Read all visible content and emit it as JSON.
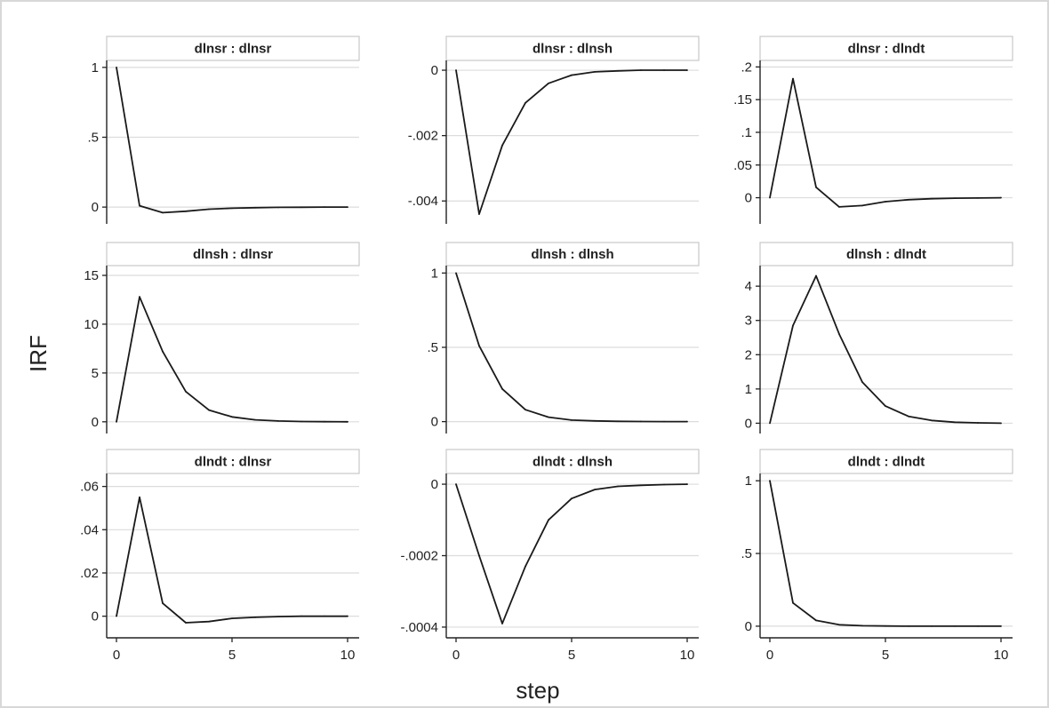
{
  "chart_data": {
    "type": "line",
    "xlabel": "step",
    "ylabel": "IRF",
    "xlim": [
      0,
      10
    ],
    "xticks": [
      0,
      5,
      10
    ],
    "grid": true,
    "x": [
      0,
      1,
      2,
      3,
      4,
      5,
      6,
      7,
      8,
      9,
      10
    ],
    "panels": [
      {
        "title": "dlnsr : dlnsr",
        "ylim": [
          -0.12,
          1.05
        ],
        "yticks": [
          {
            "v": 1,
            "label": "1"
          },
          {
            "v": 0.5,
            "label": ".5"
          },
          {
            "v": 0,
            "label": "0"
          }
        ],
        "values": [
          1,
          0.01,
          -0.04,
          -0.03,
          -0.015,
          -0.008,
          -0.004,
          -0.002,
          -0.001,
          0,
          0
        ]
      },
      {
        "title": "dlnsr : dlnsh",
        "ylim": [
          -0.0047,
          0.0003
        ],
        "yticks": [
          {
            "v": 0,
            "label": "0"
          },
          {
            "v": -0.002,
            "label": "-.002"
          },
          {
            "v": -0.004,
            "label": "-.004"
          }
        ],
        "values": [
          0,
          -0.0044,
          -0.0023,
          -0.001,
          -0.0004,
          -0.00015,
          -5e-05,
          -2e-05,
          0,
          0,
          0
        ]
      },
      {
        "title": "dlnsr : dlndt",
        "ylim": [
          -0.04,
          0.21
        ],
        "yticks": [
          {
            "v": 0.2,
            "label": ".2"
          },
          {
            "v": 0.15,
            "label": ".15"
          },
          {
            "v": 0.1,
            "label": ".1"
          },
          {
            "v": 0.05,
            "label": ".05"
          },
          {
            "v": 0,
            "label": "0"
          }
        ],
        "values": [
          0,
          0.182,
          0.016,
          -0.014,
          -0.012,
          -0.006,
          -0.003,
          -0.0015,
          -0.0008,
          -0.0004,
          0
        ]
      },
      {
        "title": "dlnsh : dlnsr",
        "ylim": [
          -1.2,
          16
        ],
        "yticks": [
          {
            "v": 15,
            "label": "15"
          },
          {
            "v": 10,
            "label": "10"
          },
          {
            "v": 5,
            "label": "5"
          },
          {
            "v": 0,
            "label": "0"
          }
        ],
        "values": [
          0,
          12.8,
          7.2,
          3.1,
          1.2,
          0.5,
          0.2,
          0.08,
          0.03,
          0.01,
          0
        ]
      },
      {
        "title": "dlnsh : dlnsh",
        "ylim": [
          -0.08,
          1.05
        ],
        "yticks": [
          {
            "v": 1,
            "label": "1"
          },
          {
            "v": 0.5,
            "label": ".5"
          },
          {
            "v": 0,
            "label": "0"
          }
        ],
        "values": [
          1,
          0.51,
          0.22,
          0.08,
          0.03,
          0.01,
          0.005,
          0.002,
          0.001,
          0,
          0
        ]
      },
      {
        "title": "dlnsh : dlndt",
        "ylim": [
          -0.3,
          4.6
        ],
        "yticks": [
          {
            "v": 4,
            "label": "4"
          },
          {
            "v": 3,
            "label": "3"
          },
          {
            "v": 2,
            "label": "2"
          },
          {
            "v": 1,
            "label": "1"
          },
          {
            "v": 0,
            "label": "0"
          }
        ],
        "values": [
          0,
          2.85,
          4.3,
          2.6,
          1.2,
          0.5,
          0.2,
          0.08,
          0.03,
          0.01,
          0
        ]
      },
      {
        "title": "dlndt : dlnsr",
        "ylim": [
          -0.01,
          0.066
        ],
        "yticks": [
          {
            "v": 0.06,
            "label": ".06"
          },
          {
            "v": 0.04,
            "label": ".04"
          },
          {
            "v": 0.02,
            "label": ".02"
          },
          {
            "v": 0,
            "label": "0"
          }
        ],
        "values": [
          0,
          0.055,
          0.006,
          -0.003,
          -0.0025,
          -0.001,
          -0.0005,
          -0.0002,
          0,
          0,
          0
        ]
      },
      {
        "title": "dlndt : dlnsh",
        "ylim": [
          -0.00043,
          3e-05
        ],
        "yticks": [
          {
            "v": 0,
            "label": "0"
          },
          {
            "v": -0.0002,
            "label": "-.0002"
          },
          {
            "v": -0.0004,
            "label": "-.0004"
          }
        ],
        "values": [
          0,
          -0.0002,
          -0.00039,
          -0.00023,
          -0.0001,
          -4e-05,
          -1.5e-05,
          -6e-06,
          -3e-06,
          -1e-06,
          0
        ]
      },
      {
        "title": "dlndt : dlndt",
        "ylim": [
          -0.08,
          1.05
        ],
        "yticks": [
          {
            "v": 1,
            "label": "1"
          },
          {
            "v": 0.5,
            "label": ".5"
          },
          {
            "v": 0,
            "label": "0"
          }
        ],
        "values": [
          1,
          0.16,
          0.04,
          0.01,
          0.003,
          0.001,
          0,
          0,
          0,
          0,
          0
        ]
      }
    ]
  }
}
